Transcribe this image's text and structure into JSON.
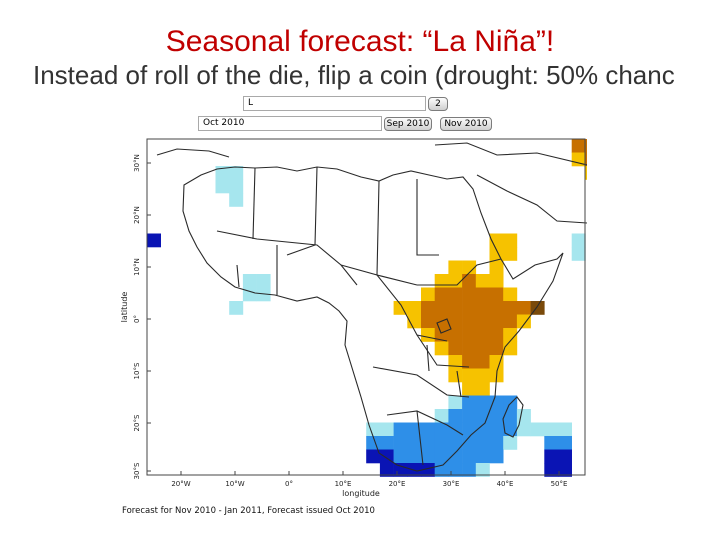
{
  "slide": {
    "title": "Seasonal forecast: “La Niña”!",
    "subtitle": "Instead of roll of the die, flip a coin (drought: 50% chanc"
  },
  "controls": {
    "region_value": "L",
    "region_button": "2",
    "month_value": "Oct 2010",
    "prev_button": "Sep 2010",
    "next_button": "Nov 2010"
  },
  "map": {
    "x_ticks": [
      "20°W",
      "10°W",
      "0°",
      "10°E",
      "20°E",
      "30°E",
      "40°E",
      "50°E"
    ],
    "y_ticks": [
      "30°N",
      "20°N",
      "10°N",
      "0°",
      "10°S",
      "20°S",
      "30°S"
    ],
    "xlabel": "longitude",
    "ylabel": "latitude",
    "colors": {
      "wet_light": "#a6e6ee",
      "wet_mid": "#2e8fe8",
      "wet_dark": "#0a14b4",
      "dry_light": "#f6c200",
      "dry_mid": "#c77000",
      "dry_dark": "#7a4a0a"
    }
  },
  "caption": "Forecast for Nov 2010 - Jan 2011, Forecast issued Oct 2010"
}
